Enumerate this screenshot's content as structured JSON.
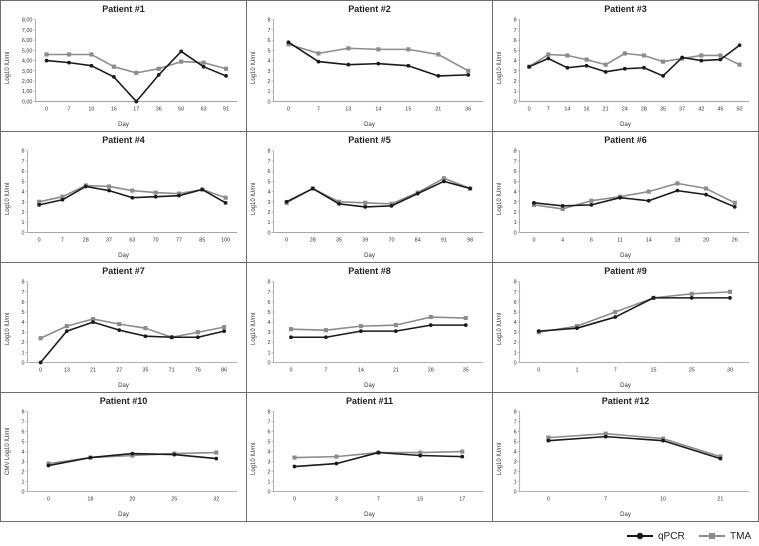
{
  "colors": {
    "qpcr": "#1a1a1a",
    "tma": "#8c8c8c",
    "axis": "#9a9a9a",
    "border": "#6e6e6e"
  },
  "legend": {
    "qpcr": "qPCR",
    "tma": "TMA"
  },
  "chart_data": [
    {
      "type": "line",
      "title": "Patient #1",
      "xlabel": "Day",
      "ylabel": "Log10 IU/ml",
      "ylim": [
        0,
        8
      ],
      "yticks": [
        "0,00",
        "1,00",
        "2,00",
        "3,00",
        "4,00",
        "5,00",
        "6,00",
        "7,00",
        "8,00"
      ],
      "categories": [
        "0",
        "7",
        "10",
        "16",
        "17",
        "36",
        "50",
        "63",
        "91"
      ],
      "series": [
        {
          "name": "qPCR",
          "values": [
            4.0,
            3.8,
            3.5,
            2.4,
            0.0,
            2.6,
            4.9,
            3.4,
            2.5
          ]
        },
        {
          "name": "TMA",
          "values": [
            4.6,
            4.6,
            4.6,
            3.4,
            2.8,
            3.2,
            3.9,
            3.8,
            3.2
          ]
        }
      ]
    },
    {
      "type": "line",
      "title": "Patient #2",
      "xlabel": "Day",
      "ylabel": "Log10 IU/ml",
      "ylim": [
        0,
        8
      ],
      "yticks": [
        "0",
        "1",
        "2",
        "3",
        "4",
        "5",
        "6",
        "7",
        "8"
      ],
      "categories": [
        "0",
        "7",
        "13",
        "14",
        "15",
        "21",
        "36"
      ],
      "series": [
        {
          "name": "qPCR",
          "values": [
            5.8,
            3.9,
            3.6,
            3.7,
            3.5,
            2.5,
            2.6
          ]
        },
        {
          "name": "TMA",
          "values": [
            5.6,
            4.7,
            5.2,
            5.1,
            5.1,
            4.6,
            3.0
          ]
        }
      ]
    },
    {
      "type": "line",
      "title": "Patient #3",
      "xlabel": "Day",
      "ylabel": "Log10 IU/ml",
      "ylim": [
        0,
        8
      ],
      "yticks": [
        "0",
        "1",
        "2",
        "3",
        "4",
        "5",
        "6",
        "7",
        "8"
      ],
      "categories": [
        "0",
        "7",
        "14",
        "16",
        "21",
        "24",
        "28",
        "35",
        "37",
        "42",
        "45",
        "50"
      ],
      "series": [
        {
          "name": "qPCR",
          "values": [
            3.4,
            4.2,
            3.3,
            3.5,
            2.9,
            3.2,
            3.3,
            2.5,
            4.3,
            4.0,
            4.1,
            5.5
          ]
        },
        {
          "name": "TMA",
          "values": [
            3.4,
            4.6,
            4.5,
            4.1,
            3.6,
            4.7,
            4.5,
            3.9,
            4.2,
            4.5,
            4.5,
            3.6
          ]
        }
      ]
    },
    {
      "type": "line",
      "title": "Patient #4",
      "xlabel": "Day",
      "ylabel": "Log10 IU/ml",
      "ylim": [
        0,
        8
      ],
      "yticks": [
        "0",
        "1",
        "2",
        "3",
        "4",
        "5",
        "6",
        "7",
        "8"
      ],
      "categories": [
        "0",
        "7",
        "28",
        "37",
        "63",
        "70",
        "77",
        "85",
        "100"
      ],
      "series": [
        {
          "name": "qPCR",
          "values": [
            2.7,
            3.2,
            4.5,
            4.1,
            3.4,
            3.5,
            3.6,
            4.2,
            2.9
          ]
        },
        {
          "name": "TMA",
          "values": [
            3.0,
            3.5,
            4.6,
            4.5,
            4.1,
            3.9,
            3.8,
            4.2,
            3.4
          ]
        }
      ]
    },
    {
      "type": "line",
      "title": "Patient #5",
      "xlabel": "Day",
      "ylabel": "Log10 IU/ml",
      "ylim": [
        0,
        8
      ],
      "yticks": [
        "0",
        "1",
        "2",
        "3",
        "4",
        "5",
        "6",
        "7",
        "8"
      ],
      "categories": [
        "0",
        "28",
        "35",
        "39",
        "70",
        "84",
        "91",
        "98"
      ],
      "series": [
        {
          "name": "qPCR",
          "values": [
            3.0,
            4.3,
            2.8,
            2.5,
            2.6,
            3.8,
            5.0,
            4.3
          ]
        },
        {
          "name": "TMA",
          "values": [
            2.9,
            4.3,
            3.0,
            2.9,
            2.8,
            3.9,
            5.3,
            4.3
          ]
        }
      ]
    },
    {
      "type": "line",
      "title": "Patient #6",
      "xlabel": "Day",
      "ylabel": "Log10 IU/ml",
      "ylim": [
        0,
        8
      ],
      "yticks": [
        "0",
        "1",
        "2",
        "3",
        "4",
        "5",
        "6",
        "7",
        "8"
      ],
      "categories": [
        "0",
        "4",
        "6",
        "11",
        "14",
        "18",
        "20",
        "26"
      ],
      "series": [
        {
          "name": "qPCR",
          "values": [
            2.9,
            2.6,
            2.7,
            3.4,
            3.1,
            4.1,
            3.7,
            2.5
          ]
        },
        {
          "name": "TMA",
          "values": [
            2.7,
            2.3,
            3.1,
            3.5,
            4.0,
            4.8,
            4.3,
            2.9
          ]
        }
      ]
    },
    {
      "type": "line",
      "title": "Patient #7",
      "xlabel": "Day",
      "ylabel": "Log10 IU/ml",
      "ylim": [
        0,
        8
      ],
      "yticks": [
        "0",
        "1",
        "2",
        "3",
        "4",
        "5",
        "6",
        "7",
        "8"
      ],
      "categories": [
        "0",
        "13",
        "21",
        "27",
        "35",
        "71",
        "76",
        "86"
      ],
      "series": [
        {
          "name": "qPCR",
          "values": [
            0.0,
            3.1,
            4.0,
            3.2,
            2.6,
            2.5,
            2.5,
            3.1
          ]
        },
        {
          "name": "TMA",
          "values": [
            2.4,
            3.6,
            4.3,
            3.8,
            3.4,
            2.5,
            3.0,
            3.5
          ]
        }
      ]
    },
    {
      "type": "line",
      "title": "Patient #8",
      "xlabel": "Day",
      "ylabel": "Log10 IU/ml",
      "ylim": [
        0,
        8
      ],
      "yticks": [
        "0",
        "1",
        "2",
        "3",
        "4",
        "5",
        "6",
        "7",
        "8"
      ],
      "categories": [
        "0",
        "7",
        "14",
        "21",
        "28",
        "35"
      ],
      "series": [
        {
          "name": "qPCR",
          "values": [
            2.5,
            2.5,
            3.1,
            3.1,
            3.7,
            3.7
          ]
        },
        {
          "name": "TMA",
          "values": [
            3.3,
            3.2,
            3.6,
            3.7,
            4.5,
            4.4
          ]
        }
      ]
    },
    {
      "type": "line",
      "title": "Patient #9",
      "xlabel": "Day",
      "ylabel": "Log10 IU/ml",
      "ylim": [
        0,
        8
      ],
      "yticks": [
        "0",
        "1",
        "2",
        "3",
        "4",
        "5",
        "6",
        "7",
        "8"
      ],
      "categories": [
        "0",
        "1",
        "7",
        "15",
        "25",
        "30"
      ],
      "series": [
        {
          "name": "qPCR",
          "values": [
            3.1,
            3.4,
            4.5,
            6.4,
            6.4,
            6.4
          ]
        },
        {
          "name": "TMA",
          "values": [
            3.0,
            3.6,
            5.0,
            6.4,
            6.8,
            7.0
          ]
        }
      ]
    },
    {
      "type": "line",
      "title": "Patient #10",
      "xlabel": "Day",
      "ylabel": "CMV Log10 IU/ml",
      "ylim": [
        0,
        8
      ],
      "yticks": [
        "0",
        "1",
        "2",
        "3",
        "4",
        "5",
        "6",
        "7",
        "8"
      ],
      "categories": [
        "0",
        "18",
        "20",
        "25",
        "32"
      ],
      "series": [
        {
          "name": "qPCR",
          "values": [
            2.6,
            3.4,
            3.8,
            3.7,
            3.3
          ]
        },
        {
          "name": "TMA",
          "values": [
            2.8,
            3.4,
            3.6,
            3.8,
            3.9
          ]
        }
      ]
    },
    {
      "type": "line",
      "title": "Patient #11",
      "xlabel": "Day",
      "ylabel": "Log10 IU/ml",
      "ylim": [
        0,
        8
      ],
      "yticks": [
        "0",
        "1",
        "2",
        "3",
        "4",
        "5",
        "6",
        "7",
        "8"
      ],
      "categories": [
        "0",
        "3",
        "7",
        "15",
        "17"
      ],
      "series": [
        {
          "name": "qPCR",
          "values": [
            2.5,
            2.8,
            3.9,
            3.6,
            3.5
          ]
        },
        {
          "name": "TMA",
          "values": [
            3.4,
            3.5,
            3.9,
            3.9,
            4.0
          ]
        }
      ]
    },
    {
      "type": "line",
      "title": "Patient #12",
      "xlabel": "Day",
      "ylabel": "Log10 IU/ml",
      "ylim": [
        0,
        8
      ],
      "yticks": [
        "0",
        "1",
        "2",
        "3",
        "4",
        "5",
        "6",
        "7",
        "8"
      ],
      "categories": [
        "0",
        "7",
        "10",
        "21"
      ],
      "series": [
        {
          "name": "qPCR",
          "values": [
            5.1,
            5.5,
            5.1,
            3.3
          ]
        },
        {
          "name": "TMA",
          "values": [
            5.4,
            5.8,
            5.3,
            3.5
          ]
        }
      ]
    }
  ]
}
